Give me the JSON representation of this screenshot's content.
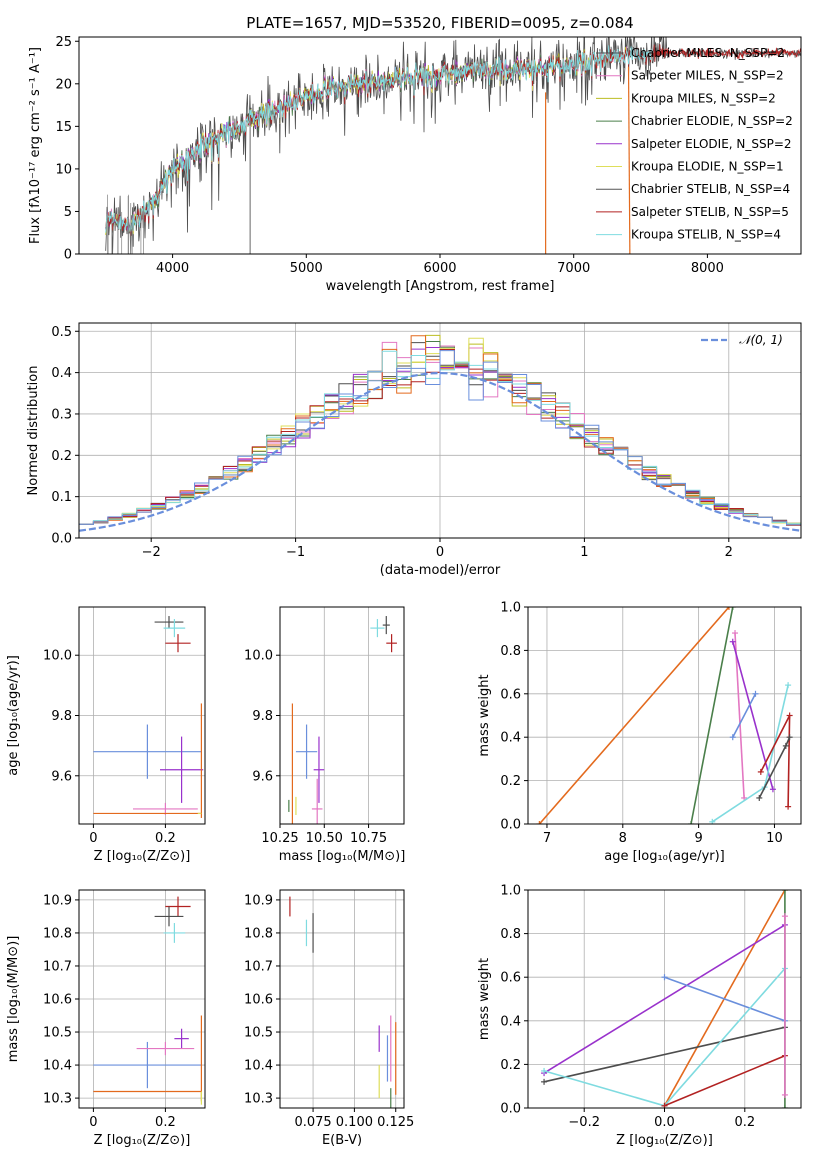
{
  "title": "PLATE=1657, MJD=53520, FIBERID=0095, z=0.084",
  "chart_data": [
    {
      "id": "spectrum",
      "type": "line",
      "xlabel": "wavelength [Angstrom, rest frame]",
      "ylabel": "Flux [fλ10⁻¹⁷ erg cm⁻² s⁻¹ A⁻¹]",
      "xlim": [
        3300,
        8700
      ],
      "ylim": [
        0,
        25.5
      ],
      "xticks": [
        4000,
        5000,
        6000,
        7000,
        8000
      ],
      "yticks": [
        0,
        5,
        10,
        15,
        20,
        25
      ],
      "grid": false,
      "legend_position": "upper-right",
      "continuum": {
        "x": [
          3500,
          3700,
          3900,
          4000,
          4200,
          4400,
          4700,
          5000,
          5300,
          5600,
          6000,
          6300,
          6700,
          7000,
          7300,
          7600
        ],
        "y": [
          4,
          3.5,
          7,
          10,
          12.5,
          14.5,
          16.5,
          18.5,
          20,
          20.5,
          21.2,
          21.5,
          21.8,
          22.3,
          23,
          23.6
        ]
      },
      "series": [
        {
          "name": "Chabrier MILES, N_SSP=2",
          "color": "#4d4d4d",
          "xmax": 7700
        },
        {
          "name": "Salpeter MILES, N_SSP=2",
          "color": "#e377c2",
          "xmax": 7400
        },
        {
          "name": "Kroupa MILES, N_SSP=2",
          "color": "#bcbd22",
          "xmax": 7400
        },
        {
          "name": "Chabrier ELODIE, N_SSP=2",
          "color": "#4a7f4a",
          "xmax": 6800
        },
        {
          "name": "Salpeter ELODIE, N_SSP=2",
          "color": "#9932cc",
          "xmax": 6800
        },
        {
          "name": "Kroupa ELODIE, N_SSP=1",
          "color": "#dede5a",
          "xmax": 6800
        },
        {
          "name": "Chabrier STELIB, N_SSP=4",
          "color": "#555555",
          "xmax": 8700
        },
        {
          "name": "Salpeter STELIB, N_SSP=5",
          "color": "#b22222",
          "xmax": 8700
        },
        {
          "name": "Kroupa STELIB, N_SSP=4",
          "color": "#7fdbe0",
          "xmax": 7600
        }
      ],
      "extra_lines": [
        {
          "color": "#e36a1e",
          "x": [
            7410,
            7420
          ],
          "y": [
            22,
            0
          ]
        },
        {
          "color": "#e36a1e",
          "x": [
            6790,
            6790
          ],
          "y": [
            19,
            0
          ]
        },
        {
          "color": "#808080",
          "x": [
            4580,
            4580
          ],
          "y": [
            16,
            0
          ]
        }
      ]
    },
    {
      "id": "residuals",
      "type": "histogram",
      "xlabel": "(data-model)/error",
      "ylabel": "Normed distribution",
      "xlim": [
        -2.5,
        2.5
      ],
      "ylim": [
        0,
        0.52
      ],
      "xticks": [
        -2,
        -1,
        0,
        1,
        2
      ],
      "yticks": [
        0.0,
        0.1,
        0.2,
        0.3,
        0.4,
        0.5
      ],
      "grid": true,
      "legend": "𝒩(0, 1)",
      "legend_position": "upper-right",
      "bins": 50,
      "series_colors": [
        "#4d4d4d",
        "#e377c2",
        "#bcbd22",
        "#4a7f4a",
        "#9932cc",
        "#dede5a",
        "#e36a1e",
        "#b22222",
        "#7fdbe0",
        "#6a8fdc"
      ],
      "gaussian": {
        "mean": 0,
        "sigma": 1,
        "color": "#6a8fdc"
      }
    },
    {
      "id": "age-vs-Z",
      "type": "errorbar",
      "xlabel": "Z [log₁₀(Z/Z⊙)]",
      "ylabel": "age  [log₁₀(age/yr)]",
      "xlim": [
        -0.04,
        0.31
      ],
      "ylim": [
        9.44,
        10.16
      ],
      "xticks": [
        0.0,
        0.2
      ],
      "yticks": [
        9.6,
        9.8,
        10.0
      ],
      "grid": true,
      "points": [
        {
          "color": "#b22222",
          "x": 0.235,
          "y": 10.04,
          "xerr": 0.035,
          "yerr": 0.03
        },
        {
          "color": "#4d4d4d",
          "x": 0.21,
          "y": 10.11,
          "xerr": 0.04,
          "yerr": 0.02
        },
        {
          "color": "#7fdbe0",
          "x": 0.225,
          "y": 10.09,
          "xerr": 0.03,
          "yerr": 0.03
        },
        {
          "color": "#6a8fdc",
          "x": 0.15,
          "y": 9.68,
          "xerr": 0.15,
          "yerr": 0.09
        },
        {
          "color": "#9932cc",
          "x": 0.245,
          "y": 9.62,
          "xerr": 0.06,
          "yerr": 0.11
        },
        {
          "color": "#e377c2",
          "x": 0.2,
          "y": 9.49,
          "xerr": 0.09,
          "yerr": 0.02
        },
        {
          "color": "#e36a1e",
          "x": 0.15,
          "y": 9.475,
          "xerr": 0.15,
          "yerr": 0.0
        },
        {
          "color": "#e36a1e",
          "x": 0.3,
          "y": 9.65,
          "xerr": 0.0,
          "yerr": 0.19
        },
        {
          "color": "#dede5a",
          "x": 0.295,
          "y": 9.475,
          "xerr": 0.005,
          "yerr": 0.0
        }
      ]
    },
    {
      "id": "age-vs-mass",
      "type": "errorbar",
      "xlabel": "mass [log₁₀(M/M⊙)]",
      "ylabel": "",
      "xlim": [
        10.25,
        10.95
      ],
      "ylim": [
        9.44,
        10.16
      ],
      "xticks": [
        10.25,
        10.5,
        10.75
      ],
      "tick_labels": [
        "10.25",
        "10.50",
        "10.75"
      ],
      "yticks": [
        9.6,
        9.8,
        10.0
      ],
      "grid": true,
      "points": [
        {
          "color": "#b22222",
          "x": 10.88,
          "y": 10.04,
          "xerr": 0.03,
          "yerr": 0.03
        },
        {
          "color": "#4d4d4d",
          "x": 10.85,
          "y": 10.1,
          "xerr": 0.02,
          "yerr": 0.03
        },
        {
          "color": "#7fdbe0",
          "x": 10.8,
          "y": 10.09,
          "xerr": 0.04,
          "yerr": 0.03
        },
        {
          "color": "#6a8fdc",
          "x": 10.4,
          "y": 9.68,
          "xerr": 0.06,
          "yerr": 0.09
        },
        {
          "color": "#9932cc",
          "x": 10.47,
          "y": 9.62,
          "xerr": 0.03,
          "yerr": 0.11
        },
        {
          "color": "#e377c2",
          "x": 10.46,
          "y": 9.49,
          "xerr": 0.03,
          "yerr": 0.1
        },
        {
          "color": "#e36a1e",
          "x": 10.32,
          "y": 9.6,
          "xerr": 0.0,
          "yerr": 0.24
        },
        {
          "color": "#dede5a",
          "x": 10.34,
          "y": 9.5,
          "xerr": 0.0,
          "yerr": 0.03
        },
        {
          "color": "#4a7f4a",
          "x": 10.3,
          "y": 9.5,
          "xerr": 0.0,
          "yerr": 0.02
        }
      ]
    },
    {
      "id": "massweight-vs-age",
      "type": "line",
      "xlabel": "age  [log₁₀(age/yr)]",
      "ylabel": "mass weight",
      "xlim": [
        6.75,
        10.35
      ],
      "ylim": [
        0,
        1
      ],
      "xticks": [
        7,
        8,
        9,
        10
      ],
      "yticks": [
        0.0,
        0.2,
        0.4,
        0.6,
        0.8,
        1.0
      ],
      "grid": true,
      "series": [
        {
          "color": "#e36a1e",
          "x": [
            6.9,
            9.4
          ],
          "y": [
            0,
            1.0
          ]
        },
        {
          "color": "#4a7f4a",
          "x": [
            8.9,
            9.45
          ],
          "y": [
            0,
            1.0
          ]
        },
        {
          "color": "#e377c2",
          "x": [
            9.48,
            9.6
          ],
          "y": [
            0.88,
            0.12
          ]
        },
        {
          "color": "#9932cc",
          "x": [
            9.45,
            9.98
          ],
          "y": [
            0.84,
            0.16
          ]
        },
        {
          "color": "#6a8fdc",
          "x": [
            9.45,
            9.75
          ],
          "y": [
            0.4,
            0.6
          ]
        },
        {
          "color": "#7fdbe0",
          "x": [
            9.18,
            9.87,
            10.18
          ],
          "y": [
            0.01,
            0.17,
            0.64
          ]
        },
        {
          "color": "#b22222",
          "x": [
            9.82,
            10.2,
            10.18
          ],
          "y": [
            0.24,
            0.5,
            0.08
          ]
        },
        {
          "color": "#4d4d4d",
          "x": [
            9.8,
            10.15,
            10.2
          ],
          "y": [
            0.12,
            0.36,
            0.4
          ]
        }
      ]
    },
    {
      "id": "mass-vs-Z",
      "type": "errorbar",
      "xlabel": "Z [log₁₀(Z/Z⊙)]",
      "ylabel": "mass [log₁₀(M/M⊙)]",
      "xlim": [
        -0.04,
        0.31
      ],
      "ylim": [
        10.27,
        10.93
      ],
      "xticks": [
        0.0,
        0.2
      ],
      "yticks": [
        10.3,
        10.4,
        10.5,
        10.6,
        10.7,
        10.8,
        10.9
      ],
      "grid": true,
      "points": [
        {
          "color": "#b22222",
          "x": 0.235,
          "y": 10.88,
          "xerr": 0.035,
          "yerr": 0.03
        },
        {
          "color": "#4d4d4d",
          "x": 0.21,
          "y": 10.85,
          "xerr": 0.04,
          "yerr": 0.03
        },
        {
          "color": "#7fdbe0",
          "x": 0.225,
          "y": 10.8,
          "xerr": 0.03,
          "yerr": 0.03
        },
        {
          "color": "#6a8fdc",
          "x": 0.15,
          "y": 10.4,
          "xerr": 0.15,
          "yerr": 0.07
        },
        {
          "color": "#9932cc",
          "x": 0.245,
          "y": 10.48,
          "xerr": 0.02,
          "yerr": 0.03
        },
        {
          "color": "#e377c2",
          "x": 0.2,
          "y": 10.45,
          "xerr": 0.08,
          "yerr": 0.02
        },
        {
          "color": "#e36a1e",
          "x": 0.15,
          "y": 10.32,
          "xerr": 0.15,
          "yerr": 0.0
        },
        {
          "color": "#e36a1e",
          "x": 0.3,
          "y": 10.42,
          "xerr": 0.0,
          "yerr": 0.13
        },
        {
          "color": "#dede5a",
          "x": 0.3,
          "y": 10.3,
          "xerr": 0.0,
          "yerr": 0.02
        }
      ]
    },
    {
      "id": "mass-vs-ebv",
      "type": "errorbar",
      "xlabel": "E(B-V)",
      "ylabel": "",
      "xlim": [
        0.055,
        0.13
      ],
      "ylim": [
        10.27,
        10.93
      ],
      "xticks": [
        0.075,
        0.1,
        0.125
      ],
      "tick_labels": [
        "0.075",
        "0.100",
        "0.125"
      ],
      "yticks": [
        10.3,
        10.4,
        10.5,
        10.6,
        10.7,
        10.8,
        10.9
      ],
      "grid": true,
      "points": [
        {
          "color": "#b22222",
          "x": 0.061,
          "y": 10.88,
          "xerr": 0.0,
          "yerr": 0.03
        },
        {
          "color": "#4d4d4d",
          "x": 0.075,
          "y": 10.8,
          "xerr": 0.0,
          "yerr": 0.06
        },
        {
          "color": "#7fdbe0",
          "x": 0.071,
          "y": 10.8,
          "xerr": 0.0,
          "yerr": 0.04
        },
        {
          "color": "#6a8fdc",
          "x": 0.12,
          "y": 10.42,
          "xerr": 0.0,
          "yerr": 0.07
        },
        {
          "color": "#9932cc",
          "x": 0.115,
          "y": 10.48,
          "xerr": 0.0,
          "yerr": 0.04
        },
        {
          "color": "#e377c2",
          "x": 0.122,
          "y": 10.45,
          "xerr": 0.0,
          "yerr": 0.1
        },
        {
          "color": "#e36a1e",
          "x": 0.125,
          "y": 10.42,
          "xerr": 0.0,
          "yerr": 0.11
        },
        {
          "color": "#dede5a",
          "x": 0.115,
          "y": 10.35,
          "xerr": 0.0,
          "yerr": 0.05
        },
        {
          "color": "#4a7f4a",
          "x": 0.122,
          "y": 10.3,
          "xerr": 0.0,
          "yerr": 0.03
        }
      ]
    },
    {
      "id": "massweight-vs-Z",
      "type": "line",
      "xlabel": "Z [log₁₀(Z/Z⊙)]",
      "ylabel": "mass weight",
      "xlim": [
        -0.34,
        0.34
      ],
      "ylim": [
        0,
        1
      ],
      "xticks": [
        -0.2,
        0.0,
        0.2
      ],
      "tick_labels": [
        "−0.2",
        "0.0",
        "0.2"
      ],
      "yticks": [
        0.0,
        0.2,
        0.4,
        0.6,
        0.8,
        1.0
      ],
      "grid": true,
      "series": [
        {
          "color": "#e36a1e",
          "x": [
            0.0,
            0.3
          ],
          "y": [
            0.01,
            1.0
          ]
        },
        {
          "color": "#4a7f4a",
          "x": [
            0.3,
            0.3
          ],
          "y": [
            0.0,
            1.0
          ]
        },
        {
          "color": "#9932cc",
          "x": [
            -0.3,
            0.3
          ],
          "y": [
            0.16,
            0.84
          ]
        },
        {
          "color": "#6a8fdc",
          "x": [
            0.0,
            0.3
          ],
          "y": [
            0.6,
            0.4
          ]
        },
        {
          "color": "#4d4d4d",
          "x": [
            -0.3,
            0.3
          ],
          "y": [
            0.12,
            0.37
          ]
        },
        {
          "color": "#7fdbe0",
          "x": [
            -0.3,
            0.0,
            0.3
          ],
          "y": [
            0.17,
            0.01,
            0.64
          ]
        },
        {
          "color": "#b22222",
          "x": [
            0.0,
            0.3
          ],
          "y": [
            0.01,
            0.24
          ]
        },
        {
          "color": "#e377c2",
          "x": [
            0.3,
            0.3
          ],
          "y": [
            0.06,
            0.88
          ]
        }
      ]
    }
  ]
}
